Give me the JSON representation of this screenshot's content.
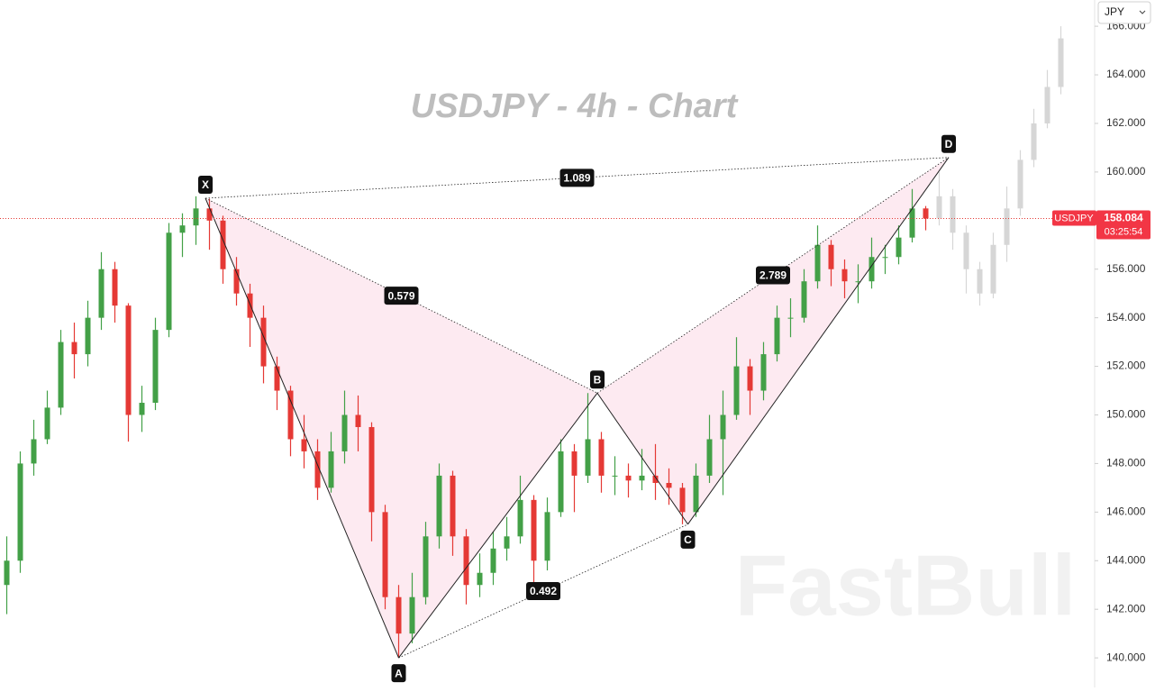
{
  "chart_data": {
    "type": "candlestick",
    "title": "USDJPY - 4h - Chart",
    "watermark": "FastBull",
    "currency": "JPY",
    "symbol": "USDJPY",
    "last_price": 158.084,
    "countdown": "03:25:54",
    "ylim": [
      138.78,
      167.08
    ],
    "xlim": [
      -0.5,
      80.5
    ],
    "yticks": [
      {
        "value": 140,
        "label": "140.000"
      },
      {
        "value": 142,
        "label": "142.000"
      },
      {
        "value": 144,
        "label": "144.000"
      },
      {
        "value": 146,
        "label": "146.000"
      },
      {
        "value": 148,
        "label": "148.000"
      },
      {
        "value": 150,
        "label": "150.000"
      },
      {
        "value": 152,
        "label": "152.000"
      },
      {
        "value": 154,
        "label": "154.000"
      },
      {
        "value": 156,
        "label": "156.000"
      },
      {
        "value": 158,
        "label": "158.000"
      },
      {
        "value": 160,
        "label": "160.000"
      },
      {
        "value": 162,
        "label": "162.000"
      },
      {
        "value": 164,
        "label": "164.000"
      },
      {
        "value": 166,
        "label": "166.000"
      }
    ],
    "up_color": "#43a047",
    "down_color": "#e53935",
    "candles": {
      "open": [
        143,
        144,
        148,
        149,
        150.3,
        153,
        152.5,
        154,
        156,
        154.5,
        150,
        150.5,
        153.5,
        157.5,
        157.8,
        158.5,
        158,
        156,
        155,
        154,
        152,
        151,
        149,
        148.5,
        147,
        148.5,
        150,
        149.5,
        146,
        142.5,
        141,
        142.5,
        145,
        147.5,
        145,
        143,
        143.5,
        144.5,
        145,
        146.5,
        144,
        146,
        148.5,
        147.5,
        149,
        147.5,
        147.5,
        147.3,
        147.5,
        147.2,
        147,
        146,
        147.5,
        149,
        150,
        152,
        151,
        152.5,
        154,
        154,
        155.5,
        157,
        156,
        155.5,
        155.5,
        156.5,
        156.5,
        157.3,
        158.5
      ],
      "high": [
        145,
        148.5,
        149.8,
        151,
        153.5,
        153.8,
        154.7,
        156.7,
        156.3,
        154.6,
        151.2,
        154,
        157.9,
        158.3,
        159,
        158.9,
        158.2,
        156.5,
        155.4,
        154.5,
        152.4,
        151.2,
        150,
        149,
        149.3,
        151,
        150.8,
        149.7,
        146.3,
        143,
        143.5,
        145.6,
        148,
        147.7,
        145.3,
        144.3,
        145.2,
        145.8,
        147.5,
        146.7,
        146.6,
        149,
        148.8,
        150.9,
        149.3,
        148.3,
        148,
        148.6,
        148.8,
        147.8,
        147.2,
        148,
        150,
        151,
        153.2,
        152.3,
        153,
        154.5,
        154.8,
        156,
        157.8,
        157.2,
        156.4,
        156.2,
        157.3,
        157,
        157.8,
        159.3,
        158.6
      ],
      "low": [
        141.8,
        143.5,
        147.5,
        148.8,
        150,
        151.5,
        152,
        153.5,
        153.8,
        148.9,
        149.3,
        150.2,
        153.2,
        156.5,
        157,
        156.8,
        155.4,
        154.5,
        152.8,
        151.3,
        150.2,
        148.3,
        147.8,
        146.5,
        146.8,
        148,
        148.5,
        144.8,
        142,
        140,
        140.6,
        142.2,
        144.5,
        144.2,
        142.2,
        142.5,
        143,
        144,
        144.7,
        143,
        143.6,
        145.8,
        146,
        147.2,
        146.8,
        146.7,
        146.6,
        146.9,
        146.5,
        146.3,
        145.5,
        145.8,
        147.2,
        146.7,
        149.8,
        150,
        150.6,
        152.2,
        153.2,
        153.8,
        155.2,
        155.3,
        154.8,
        154.6,
        155.2,
        155.8,
        156.2,
        157.1,
        157.6
      ],
      "close": [
        144,
        148,
        149,
        150.3,
        153,
        152.5,
        154,
        156,
        154.5,
        150,
        150.5,
        153.5,
        157.5,
        157.8,
        158.5,
        158,
        156,
        155,
        154,
        152,
        151,
        149,
        148.5,
        147,
        148.5,
        150,
        149.5,
        146,
        142.5,
        141,
        142.5,
        145,
        147.5,
        145,
        143,
        143.5,
        144.5,
        145,
        146.5,
        144,
        146,
        148.5,
        147.5,
        149,
        147.5,
        147.5,
        147.3,
        147.5,
        147.2,
        147,
        146,
        147.5,
        149,
        150,
        152,
        151,
        152.5,
        154,
        154,
        155.5,
        157,
        156,
        155.5,
        155.5,
        156.5,
        156.5,
        157.3,
        158.5,
        158.084
      ]
    },
    "projection": {
      "color": "#d6d6d6",
      "x": [
        69,
        70,
        71,
        72,
        73,
        74,
        75,
        76,
        77,
        78
      ],
      "open": [
        158.1,
        159,
        157.5,
        156,
        155,
        157,
        158.5,
        160.5,
        162,
        163.5
      ],
      "high": [
        160,
        159.3,
        157.8,
        156.3,
        157.5,
        159.4,
        160.9,
        162.6,
        164.2,
        166
      ],
      "low": [
        157.8,
        156.8,
        155,
        154.5,
        154.8,
        156.3,
        158.2,
        160.2,
        161.8,
        163.2
      ],
      "close": [
        159,
        157.5,
        156,
        155,
        157,
        158.5,
        160.5,
        162,
        163.5,
        165.5
      ]
    },
    "pattern": {
      "points": [
        {
          "label": "X",
          "x": 14.7,
          "y": 158.92
        },
        {
          "label": "A",
          "x": 29.0,
          "y": 140.0
        },
        {
          "label": "B",
          "x": 43.7,
          "y": 150.9
        },
        {
          "label": "C",
          "x": 50.4,
          "y": 145.5
        },
        {
          "label": "D",
          "x": 69.7,
          "y": 160.6
        }
      ],
      "ratios": [
        {
          "from": 0,
          "to": 4,
          "value": 1.089
        },
        {
          "from": 0,
          "to": 2,
          "value": 0.579
        },
        {
          "from": 1,
          "to": 3,
          "value": 0.492
        },
        {
          "from": 2,
          "to": 4,
          "value": 2.789
        }
      ]
    }
  }
}
